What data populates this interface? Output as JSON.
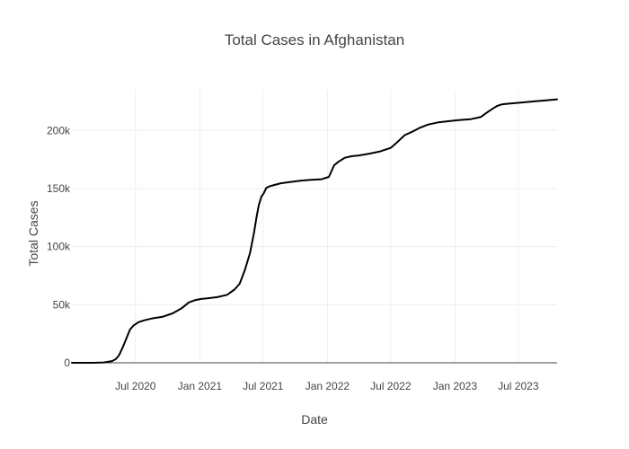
{
  "chart_data": {
    "type": "line",
    "title": "Total Cases in Afghanistan",
    "xlabel": "Date",
    "ylabel": "Total Cases",
    "grid": true,
    "legend": "none",
    "x_range": [
      "2020-01-01",
      "2023-10-20"
    ],
    "ylim": [
      0,
      235000
    ],
    "x_ticks": [
      {
        "date": "2020-07-01",
        "label": "Jul 2020"
      },
      {
        "date": "2021-01-01",
        "label": "Jan 2021"
      },
      {
        "date": "2021-07-01",
        "label": "Jul 2021"
      },
      {
        "date": "2022-01-01",
        "label": "Jan 2022"
      },
      {
        "date": "2022-07-01",
        "label": "Jul 2022"
      },
      {
        "date": "2023-01-01",
        "label": "Jan 2023"
      },
      {
        "date": "2023-07-01",
        "label": "Jul 2023"
      }
    ],
    "y_ticks": [
      {
        "value": 0,
        "label": "0"
      },
      {
        "value": 50000,
        "label": "50k"
      },
      {
        "value": 100000,
        "label": "100k"
      },
      {
        "value": 150000,
        "label": "150k"
      },
      {
        "value": 200000,
        "label": "200k"
      }
    ],
    "series": [
      {
        "name": "Total Cases",
        "color": "#000000",
        "x": [
          "2020-01-01",
          "2020-03-01",
          "2020-04-01",
          "2020-04-25",
          "2020-05-05",
          "2020-05-15",
          "2020-05-25",
          "2020-06-05",
          "2020-06-15",
          "2020-06-25",
          "2020-07-10",
          "2020-07-25",
          "2020-08-15",
          "2020-09-15",
          "2020-10-15",
          "2020-11-10",
          "2020-12-01",
          "2020-12-20",
          "2021-01-05",
          "2021-01-25",
          "2021-02-20",
          "2021-03-20",
          "2021-04-10",
          "2021-04-25",
          "2021-05-10",
          "2021-05-25",
          "2021-06-05",
          "2021-06-12",
          "2021-06-19",
          "2021-06-26",
          "2021-07-03",
          "2021-07-10",
          "2021-07-20",
          "2021-08-01",
          "2021-08-20",
          "2021-09-15",
          "2021-10-15",
          "2021-11-15",
          "2021-12-15",
          "2022-01-05",
          "2022-01-20",
          "2022-02-01",
          "2022-02-20",
          "2022-03-10",
          "2022-04-01",
          "2022-05-01",
          "2022-06-01",
          "2022-07-01",
          "2022-07-20",
          "2022-08-10",
          "2022-09-01",
          "2022-09-20",
          "2022-10-15",
          "2022-11-15",
          "2022-12-15",
          "2023-01-15",
          "2023-02-15",
          "2023-03-15",
          "2023-04-05",
          "2023-04-20",
          "2023-05-01",
          "2023-05-15",
          "2023-06-01",
          "2023-06-20",
          "2023-07-15",
          "2023-08-15",
          "2023-09-15",
          "2023-10-20"
        ],
        "values": [
          0,
          0,
          300,
          1500,
          3000,
          6500,
          13000,
          21000,
          28500,
          32000,
          35000,
          36500,
          38000,
          39500,
          42500,
          47000,
          52000,
          54000,
          55000,
          55600,
          56500,
          58500,
          63000,
          68000,
          80000,
          95000,
          112000,
          125000,
          136000,
          143000,
          146000,
          150500,
          152000,
          153000,
          154500,
          155500,
          156700,
          157500,
          158000,
          160000,
          170000,
          173000,
          176500,
          177800,
          178500,
          180000,
          182000,
          185000,
          190000,
          196000,
          199000,
          202000,
          205000,
          207000,
          208000,
          209000,
          209700,
          211500,
          216000,
          219000,
          221000,
          222500,
          223000,
          223500,
          224200,
          225000,
          225800,
          226800
        ]
      }
    ]
  }
}
